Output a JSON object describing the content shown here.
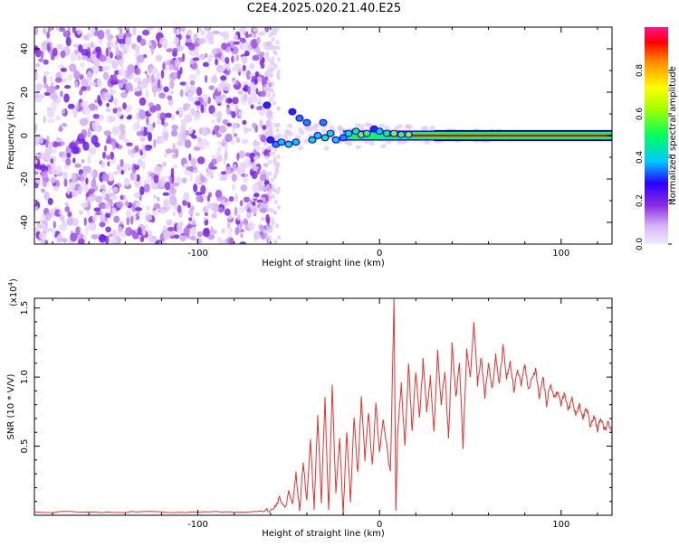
{
  "title": "C2E4.2025.020.21.40.E25",
  "chart_data": [
    {
      "type": "heatmap",
      "xlabel": "Height of straight line (km)",
      "ylabel": "Frequency (Hz)",
      "xlim": [
        -190,
        128
      ],
      "ylim": [
        -50,
        50
      ],
      "x_ticks": [
        -100,
        0,
        100
      ],
      "y_ticks": [
        -40,
        -20,
        0,
        20,
        40
      ],
      "noise_region_x": [
        -190,
        -60
      ],
      "signal_band_hz": [
        -1.5,
        1.5
      ],
      "colorbar": {
        "label": "Normalized spectral amplitude",
        "range": [
          0,
          1
        ],
        "ticks": [
          0.0,
          0.2,
          0.4,
          0.6,
          0.8
        ],
        "tick_labels": [
          "0.0",
          "0.2",
          "0.4",
          "0.6",
          "0.8"
        ]
      },
      "blobs": [
        {
          "x": -62,
          "y": 14,
          "v": 0.3
        },
        {
          "x": -60,
          "y": -2,
          "v": 0.3
        },
        {
          "x": -57,
          "y": -4,
          "v": 0.35
        },
        {
          "x": -54,
          "y": -3,
          "v": 0.4
        },
        {
          "x": -50,
          "y": -4,
          "v": 0.45
        },
        {
          "x": -46,
          "y": -3,
          "v": 0.4
        },
        {
          "x": -48,
          "y": 11,
          "v": 0.3
        },
        {
          "x": -44,
          "y": 8,
          "v": 0.35
        },
        {
          "x": -40,
          "y": 6,
          "v": 0.35
        },
        {
          "x": -37,
          "y": -2,
          "v": 0.45
        },
        {
          "x": -34,
          "y": 0,
          "v": 0.4
        },
        {
          "x": -31,
          "y": 6,
          "v": 0.35
        },
        {
          "x": -30,
          "y": -1,
          "v": 0.5
        },
        {
          "x": -27,
          "y": 1,
          "v": 0.45
        },
        {
          "x": -24,
          "y": -2,
          "v": 0.4
        },
        {
          "x": -20,
          "y": -1,
          "v": 0.35
        },
        {
          "x": -17,
          "y": 1,
          "v": 0.45
        },
        {
          "x": -13,
          "y": 2,
          "v": 0.5
        },
        {
          "x": -10,
          "y": 0.5,
          "v": 0.6
        },
        {
          "x": -7,
          "y": 1,
          "v": 0.55
        },
        {
          "x": -3,
          "y": 3,
          "v": 0.3
        },
        {
          "x": 0,
          "y": 2,
          "v": 0.4
        },
        {
          "x": 4,
          "y": 1,
          "v": 0.5
        },
        {
          "x": 8,
          "y": 1,
          "v": 0.6
        },
        {
          "x": 12,
          "y": 0.5,
          "v": 0.55
        },
        {
          "x": 16,
          "y": 0.5,
          "v": 0.6
        }
      ]
    },
    {
      "type": "line",
      "xlabel": "Height of straight line (km)",
      "ylabel": "SNR (10 * V/V)",
      "y_multiplier_label": "(x10",
      "y_multiplier_exp": "4",
      "y_multiplier_close": ")",
      "xlim": [
        -190,
        128
      ],
      "ylim": [
        0,
        1.57
      ],
      "x_ticks": [
        -100,
        0,
        100
      ],
      "y_ticks": [
        0.5,
        1.0,
        1.5
      ],
      "y_tick_labels": [
        "0.5",
        "1.0",
        "1.5"
      ],
      "line_color": "#e8312c",
      "series": [
        {
          "points": [
            [
              -190,
              0.02
            ],
            [
              -170,
              0.025
            ],
            [
              -150,
              0.02
            ],
            [
              -130,
              0.025
            ],
            [
              -110,
              0.02
            ],
            [
              -90,
              0.025
            ],
            [
              -70,
              0.025
            ],
            [
              -62,
              0.03
            ],
            [
              -58,
              0.06
            ],
            [
              -55,
              0.12
            ],
            [
              -52,
              0.04
            ],
            [
              -50,
              0.18
            ],
            [
              -48,
              0.08
            ],
            [
              -46,
              0.3
            ],
            [
              -44,
              0.05
            ],
            [
              -42,
              0.38
            ],
            [
              -40,
              0.1
            ],
            [
              -38,
              0.55
            ],
            [
              -36,
              0.05
            ],
            [
              -34,
              0.72
            ],
            [
              -32,
              0.1
            ],
            [
              -30,
              0.85
            ],
            [
              -28,
              0.02
            ],
            [
              -26,
              0.95
            ],
            [
              -24,
              0.15
            ],
            [
              -22,
              0.55
            ],
            [
              -20,
              0.02
            ],
            [
              -18,
              0.6
            ],
            [
              -16,
              0.1
            ],
            [
              -14,
              0.72
            ],
            [
              -12,
              0.3
            ],
            [
              -10,
              0.85
            ],
            [
              -8,
              0.4
            ],
            [
              -6,
              0.75
            ],
            [
              -4,
              0.35
            ],
            [
              -2,
              0.8
            ],
            [
              0,
              0.45
            ],
            [
              2,
              0.7
            ],
            [
              4,
              0.5
            ],
            [
              6,
              0.3
            ],
            [
              8,
              1.57
            ],
            [
              9,
              0.02
            ],
            [
              10,
              0.6
            ],
            [
              12,
              0.95
            ],
            [
              14,
              0.5
            ],
            [
              16,
              1.1
            ],
            [
              18,
              0.6
            ],
            [
              20,
              1.05
            ],
            [
              22,
              0.7
            ],
            [
              24,
              1.12
            ],
            [
              26,
              0.75
            ],
            [
              28,
              1.0
            ],
            [
              30,
              0.6
            ],
            [
              32,
              1.18
            ],
            [
              34,
              0.8
            ],
            [
              36,
              1.05
            ],
            [
              38,
              0.55
            ],
            [
              40,
              1.25
            ],
            [
              42,
              0.85
            ],
            [
              44,
              1.1
            ],
            [
              46,
              0.5
            ],
            [
              48,
              1.2
            ],
            [
              50,
              1.0
            ],
            [
              52,
              1.38
            ],
            [
              54,
              0.95
            ],
            [
              56,
              1.15
            ],
            [
              58,
              0.85
            ],
            [
              60,
              1.1
            ],
            [
              62,
              0.9
            ],
            [
              64,
              1.15
            ],
            [
              66,
              0.95
            ],
            [
              68,
              1.22
            ],
            [
              70,
              1.0
            ],
            [
              72,
              1.1
            ],
            [
              74,
              0.9
            ],
            [
              76,
              1.05
            ],
            [
              78,
              0.95
            ],
            [
              80,
              1.1
            ],
            [
              82,
              0.9
            ],
            [
              84,
              1.0
            ],
            [
              86,
              1.05
            ],
            [
              88,
              0.85
            ],
            [
              90,
              1.0
            ],
            [
              92,
              0.8
            ],
            [
              94,
              0.95
            ],
            [
              96,
              0.85
            ],
            [
              98,
              0.9
            ],
            [
              100,
              0.8
            ],
            [
              102,
              0.88
            ],
            [
              104,
              0.75
            ],
            [
              106,
              0.85
            ],
            [
              108,
              0.72
            ],
            [
              110,
              0.8
            ],
            [
              112,
              0.7
            ],
            [
              114,
              0.78
            ],
            [
              116,
              0.65
            ],
            [
              118,
              0.72
            ],
            [
              120,
              0.62
            ],
            [
              122,
              0.7
            ],
            [
              124,
              0.6
            ],
            [
              126,
              0.68
            ],
            [
              128,
              0.58
            ]
          ]
        }
      ]
    }
  ]
}
